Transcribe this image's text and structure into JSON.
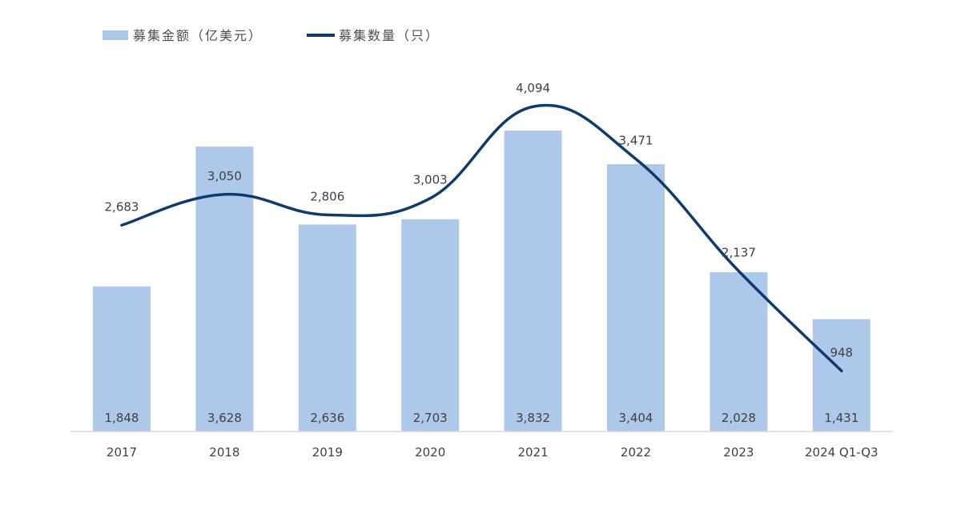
{
  "chart_data": {
    "type": "bar",
    "categories": [
      "2017",
      "2018",
      "2019",
      "2020",
      "2021",
      "2022",
      "2023",
      "2024 Q1-Q3"
    ],
    "series": [
      {
        "name": "募集金额（亿美元）",
        "type": "bar",
        "color": "#aec8ea",
        "values": [
          1848,
          3628,
          2636,
          2703,
          3832,
          3404,
          2028,
          1431
        ],
        "labels": [
          "1,848",
          "3,628",
          "2,636",
          "2,703",
          "3,832",
          "3,404",
          "2,028",
          "1,431"
        ]
      },
      {
        "name": "募集数量（只）",
        "type": "line",
        "smooth": true,
        "color": "#0d3b6e",
        "values": [
          2683,
          3050,
          2806,
          3003,
          4094,
          3471,
          2137,
          948
        ],
        "labels": [
          "2,683",
          "3,050",
          "2,806",
          "3,003",
          "4,094",
          "3,471",
          "2,137",
          "948"
        ]
      }
    ],
    "legend": {
      "position": "top-left"
    },
    "grid": false
  }
}
